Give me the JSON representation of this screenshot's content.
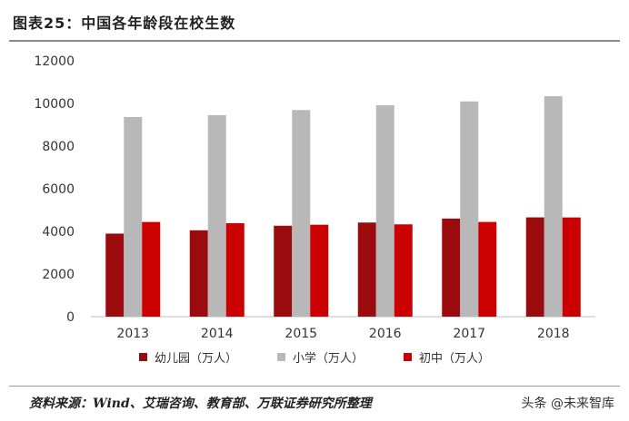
{
  "header": {
    "title": "图表25：中国各年龄段在校生数"
  },
  "legend": {
    "items": [
      {
        "label": "幼儿园（万人）",
        "color": "#9b0a0c"
      },
      {
        "label": "小学（万人）",
        "color": "#b8b8b8"
      },
      {
        "label": "初中（万人）",
        "color": "#cc0000"
      }
    ]
  },
  "footer": {
    "source": "资料来源：Wind、艾瑞咨询、教育部、万联证券研究所整理",
    "watermark": "头条 @未来智库"
  },
  "chart_data": {
    "type": "bar",
    "title": "中国各年龄段在校生数",
    "categories": [
      "2013",
      "2014",
      "2015",
      "2016",
      "2017",
      "2018"
    ],
    "series": [
      {
        "name": "幼儿园（万人）",
        "color": "#9b0a0c",
        "values": [
          3895,
          4051,
          4265,
          4414,
          4600,
          4656
        ]
      },
      {
        "name": "小学（万人）",
        "color": "#b8b8b8",
        "values": [
          9361,
          9451,
          9692,
          9913,
          10094,
          10339
        ]
      },
      {
        "name": "初中（万人）",
        "color": "#cc0000",
        "values": [
          4440,
          4384,
          4312,
          4329,
          4442,
          4653
        ]
      }
    ],
    "yticks": [
      "0",
      "2000",
      "4000",
      "6000",
      "8000",
      "10000",
      "12000"
    ],
    "ylim": [
      0,
      12000
    ],
    "grid": false,
    "legend_position": "bottom"
  }
}
